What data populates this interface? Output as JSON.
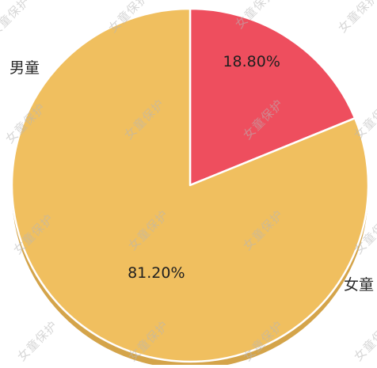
{
  "chart_data": {
    "type": "pie",
    "title": "",
    "slices": [
      {
        "label": "男童",
        "value": 18.8,
        "display": "18.80%",
        "color": "#ee4e5e",
        "side_color": "#c03a48"
      },
      {
        "label": "女童",
        "value": 81.2,
        "display": "81.20%",
        "color": "#f0bf5f",
        "side_color": "#d4a44a"
      }
    ],
    "start_angle": "12 o'clock",
    "style": "3d-tilted",
    "legend": "none",
    "category_labels": "outside"
  },
  "watermark": {
    "text": "女童保护"
  }
}
